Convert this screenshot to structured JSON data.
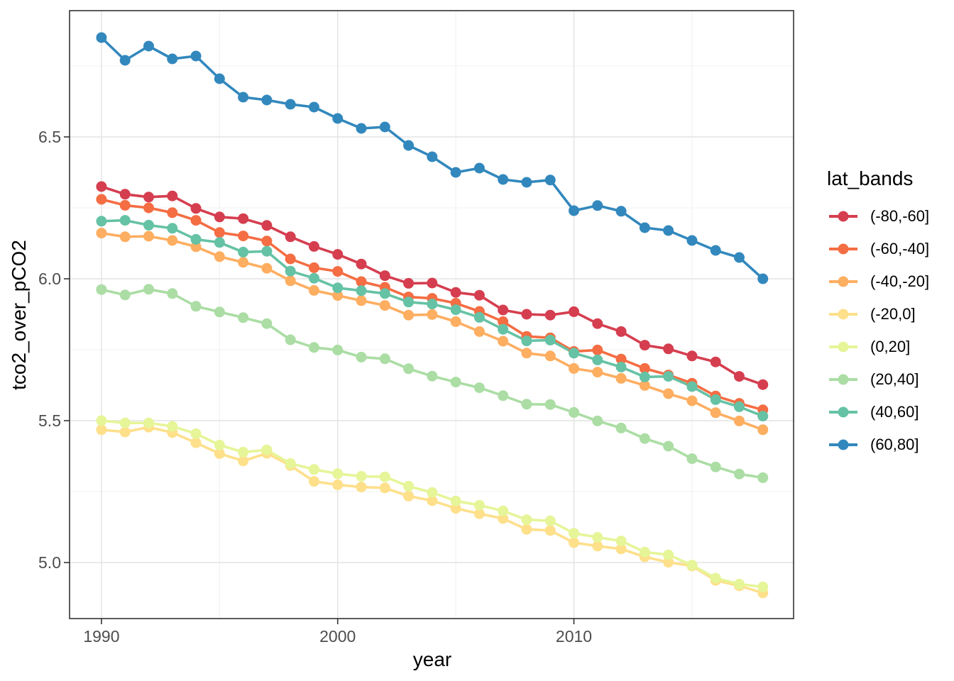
{
  "legend": {
    "title": "lat_bands"
  },
  "style": {
    "background": "#ffffff",
    "panel_border": "#333333",
    "grid_major": "#e4e4e4",
    "grid_minor": "#f1f1f1",
    "tick_color": "#333333",
    "tick_label_color": "#4d4d4d"
  },
  "chart_data": {
    "type": "line",
    "title": "",
    "xlabel": "year",
    "ylabel": "tco2_over_pCO2",
    "legend_title": "lat_bands",
    "legend_position": "right",
    "grid": true,
    "marker": "circle",
    "xlim": [
      1988.65,
      2019.3
    ],
    "ylim": [
      4.8025,
      6.945
    ],
    "x_ticks": [
      1990,
      2000,
      2010
    ],
    "x_minor": [
      1995,
      2005,
      2015
    ],
    "y_ticks": [
      "5.0",
      "5.5",
      "6.0",
      "6.5"
    ],
    "y_minor": [
      5.25,
      5.75,
      6.25,
      6.75
    ],
    "x": [
      1990,
      1991,
      1992,
      1993,
      1994,
      1995,
      1996,
      1997,
      1998,
      1999,
      2000,
      2001,
      2002,
      2003,
      2004,
      2005,
      2006,
      2007,
      2008,
      2009,
      2010,
      2011,
      2012,
      2013,
      2014,
      2015,
      2016,
      2017,
      2018
    ],
    "series": [
      {
        "name": "(-80,-60]",
        "color": "#d53e4f",
        "values": [
          6.325,
          6.298,
          6.288,
          6.292,
          6.248,
          6.218,
          6.212,
          6.188,
          6.148,
          6.114,
          6.086,
          6.052,
          6.011,
          5.984,
          5.985,
          5.952,
          5.942,
          5.89,
          5.875,
          5.872,
          5.884,
          5.842,
          5.814,
          5.766,
          5.753,
          5.728,
          5.707,
          5.656,
          5.627
        ]
      },
      {
        "name": "(-60,-40]",
        "color": "#f46d43",
        "values": [
          6.28,
          6.259,
          6.25,
          6.233,
          6.206,
          6.163,
          6.151,
          6.133,
          6.07,
          6.039,
          6.026,
          5.99,
          5.97,
          5.936,
          5.931,
          5.914,
          5.885,
          5.849,
          5.797,
          5.792,
          5.744,
          5.749,
          5.717,
          5.684,
          5.661,
          5.632,
          5.587,
          5.561,
          5.538
        ]
      },
      {
        "name": "(-40,-20]",
        "color": "#fdae61",
        "values": [
          6.161,
          6.148,
          6.15,
          6.135,
          6.113,
          6.078,
          6.058,
          6.037,
          5.993,
          5.959,
          5.941,
          5.923,
          5.906,
          5.872,
          5.874,
          5.849,
          5.814,
          5.78,
          5.738,
          5.728,
          5.684,
          5.671,
          5.649,
          5.624,
          5.595,
          5.57,
          5.528,
          5.499,
          5.468
        ]
      },
      {
        "name": "(-20,0]",
        "color": "#fee08b",
        "values": [
          5.468,
          5.46,
          5.477,
          5.458,
          5.422,
          5.384,
          5.358,
          5.385,
          5.342,
          5.286,
          5.274,
          5.266,
          5.263,
          5.234,
          5.218,
          5.191,
          5.172,
          5.155,
          5.117,
          5.113,
          5.07,
          5.058,
          5.048,
          5.02,
          5.001,
          4.988,
          4.937,
          4.918,
          4.893
        ]
      },
      {
        "name": "(0,20]",
        "color": "#e6f598",
        "values": [
          5.5,
          5.492,
          5.492,
          5.48,
          5.454,
          5.414,
          5.389,
          5.397,
          5.349,
          5.328,
          5.313,
          5.304,
          5.302,
          5.269,
          5.247,
          5.217,
          5.202,
          5.182,
          5.151,
          5.147,
          5.103,
          5.089,
          5.076,
          5.037,
          5.027,
          4.991,
          4.945,
          4.924,
          4.914
        ]
      },
      {
        "name": "(20,40]",
        "color": "#abdda4",
        "values": [
          5.962,
          5.943,
          5.963,
          5.948,
          5.903,
          5.883,
          5.863,
          5.842,
          5.785,
          5.758,
          5.749,
          5.724,
          5.718,
          5.683,
          5.657,
          5.636,
          5.616,
          5.588,
          5.558,
          5.557,
          5.529,
          5.499,
          5.474,
          5.437,
          5.41,
          5.366,
          5.337,
          5.312,
          5.299
        ]
      },
      {
        "name": "(40,60]",
        "color": "#66c2a5",
        "values": [
          6.203,
          6.206,
          6.189,
          6.178,
          6.139,
          6.128,
          6.094,
          6.097,
          6.027,
          6.002,
          5.968,
          5.958,
          5.948,
          5.918,
          5.911,
          5.891,
          5.864,
          5.822,
          5.781,
          5.784,
          5.738,
          5.714,
          5.689,
          5.654,
          5.656,
          5.62,
          5.574,
          5.549,
          5.516
        ]
      },
      {
        "name": "(60,80]",
        "color": "#3288bd",
        "values": [
          6.85,
          6.77,
          6.82,
          6.775,
          6.785,
          6.705,
          6.64,
          6.63,
          6.615,
          6.605,
          6.565,
          6.53,
          6.535,
          6.47,
          6.43,
          6.375,
          6.39,
          6.35,
          6.34,
          6.348,
          6.24,
          6.258,
          6.238,
          6.18,
          6.17,
          6.135,
          6.1,
          6.075,
          6.0
        ]
      }
    ]
  }
}
